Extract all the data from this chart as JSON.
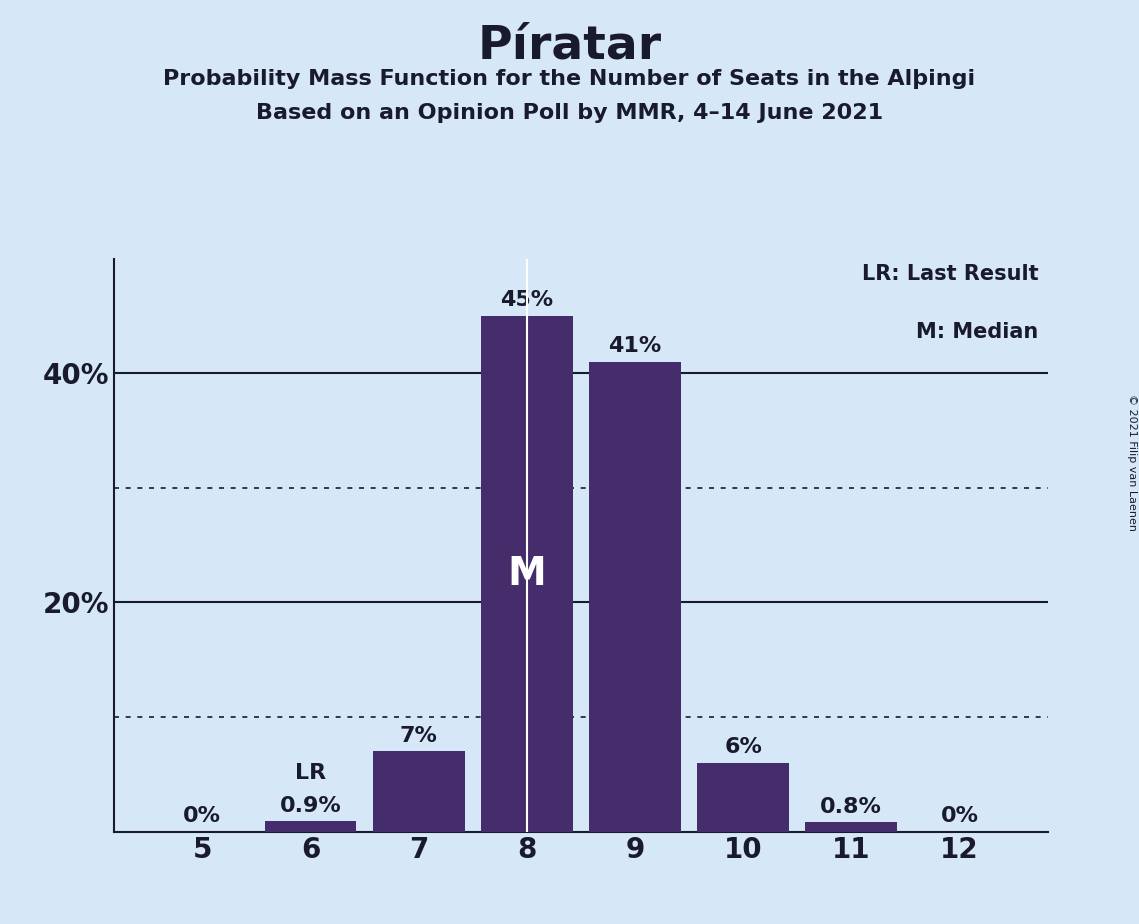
{
  "title": "Píratar",
  "subtitle1": "Probability Mass Function for the Number of Seats in the Alþingi",
  "subtitle2": "Based on an Opinion Poll by MMR, 4–14 June 2021",
  "categories": [
    5,
    6,
    7,
    8,
    9,
    10,
    11,
    12
  ],
  "values": [
    0.0,
    0.9,
    7.0,
    45.0,
    41.0,
    6.0,
    0.8,
    0.0
  ],
  "labels": [
    "0%",
    "0.9%",
    "7%",
    "45%",
    "41%",
    "6%",
    "0.8%",
    "0%"
  ],
  "bar_color": "#452D6B",
  "background_color": "#D6E8F7",
  "text_color": "#1a1a2e",
  "lr_bar": 6,
  "median_bar": 8,
  "legend_lr": "LR: Last Result",
  "legend_m": "M: Median",
  "copyright": "© 2021 Filip van Laenen",
  "ylim": [
    0,
    50
  ],
  "ytick_positions": [
    20,
    40
  ],
  "ytick_labels": [
    "20%",
    "40%"
  ],
  "dotted_ticks": [
    10,
    30
  ],
  "solid_ticks": [
    20,
    40
  ]
}
